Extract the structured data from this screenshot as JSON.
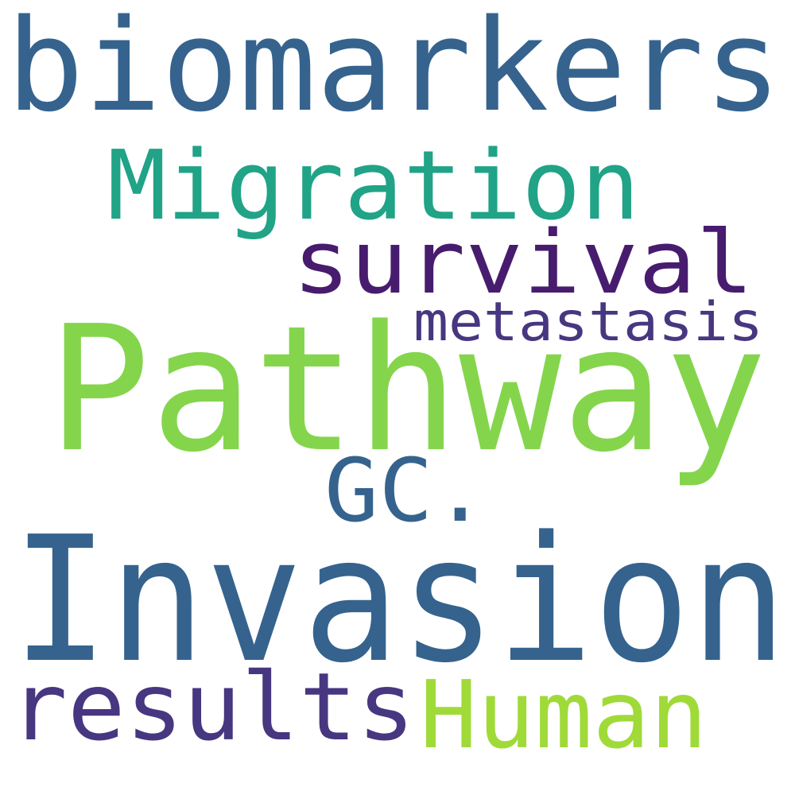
{
  "words": [
    {
      "key": "biomarkers",
      "text": "biomarkers",
      "color": "#35638e"
    },
    {
      "key": "migration",
      "text": "Migration",
      "color": "#20a386"
    },
    {
      "key": "survival",
      "text": "survival",
      "color": "#471c6e"
    },
    {
      "key": "metastasis",
      "text": "metastasis",
      "color": "#473680"
    },
    {
      "key": "pathway",
      "text": "Pathway",
      "color": "#84d54c"
    },
    {
      "key": "gc",
      "text": "GC.",
      "color": "#35638e"
    },
    {
      "key": "invasion",
      "text": "Invasion",
      "color": "#35638e"
    },
    {
      "key": "results",
      "text": "results",
      "color": "#473680"
    },
    {
      "key": "human",
      "text": "Human",
      "color": "#a0da39"
    }
  ]
}
